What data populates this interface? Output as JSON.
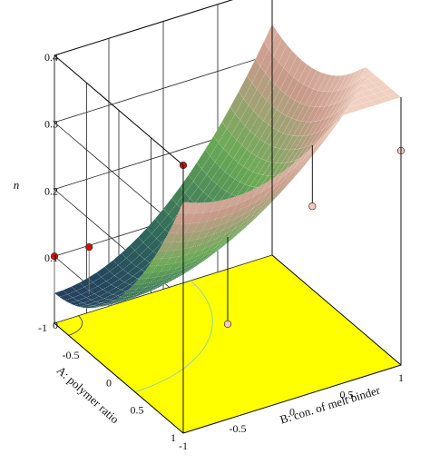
{
  "chart_data": {
    "type": "surface",
    "zlabel": "n",
    "xlabel": "A: polymer ratio",
    "ylabel": "B: con. of melt binder",
    "x_range": [
      -1,
      1
    ],
    "y_range": [
      -1,
      1
    ],
    "z_range": [
      0,
      0.4
    ],
    "x_ticks": [
      "-1",
      "-0.5",
      "0",
      "0.5",
      "1"
    ],
    "y_ticks": [
      "-1",
      "-0.5",
      "0",
      "0.5",
      "1"
    ],
    "z_ticks": [
      "0",
      "0.1",
      "0.2",
      "0.3",
      "0.4"
    ],
    "floor_color": "#ffff00",
    "surface_colors": [
      "#1a1f60",
      "#2f6a5a",
      "#6aaa55",
      "#c89a8a",
      "#f0d0c0"
    ],
    "design_points": [
      {
        "A": -1,
        "B": -1,
        "n": 0.1
      },
      {
        "A": -0.8,
        "B": -0.8,
        "n": 0.12
      },
      {
        "A": 0,
        "B": 0,
        "n": 0.03
      },
      {
        "A": 1,
        "B": -1,
        "n": 0.4
      },
      {
        "A": 1,
        "B": 1,
        "n": 0.32
      },
      {
        "A": 0.3,
        "B": 0.6,
        "n": 0.2
      }
    ]
  }
}
